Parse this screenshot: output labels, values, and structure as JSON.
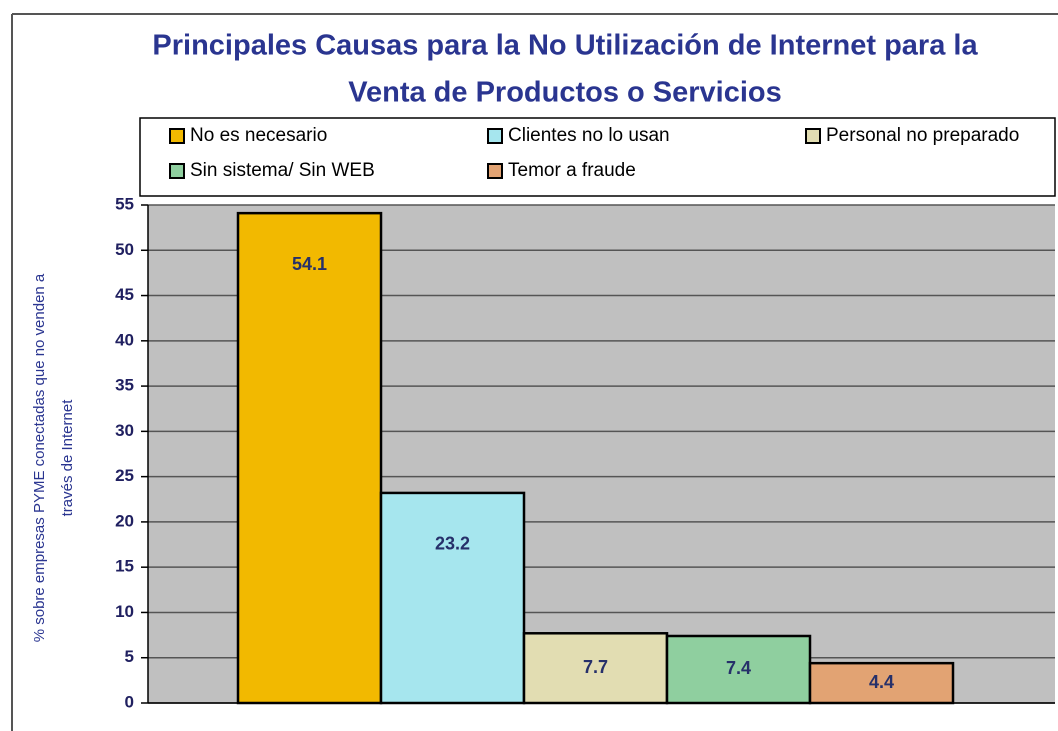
{
  "chart_data": {
    "type": "bar",
    "title": [
      "Principales Causas para la No Utilización de Internet para la",
      "Venta de Productos o Servicios"
    ],
    "y_label": [
      "% sobre empresas PYME conectadas que no venden a",
      "través de Internet"
    ],
    "series": [
      {
        "name": "No es necesario",
        "color": "#f2b900",
        "values": [
          54.1
        ]
      },
      {
        "name": "Clientes no lo usan",
        "color": "#a6e6ee",
        "values": [
          23.2
        ]
      },
      {
        "name": "Personal no preparado",
        "color": "#e2ddb2",
        "values": [
          7.7
        ]
      },
      {
        "name": "Sin sistema/ Sin WEB",
        "color": "#8fcf9f",
        "values": [
          7.4
        ]
      },
      {
        "name": "Temor a fraude",
        "color": "#e2a373",
        "values": [
          4.4
        ]
      }
    ],
    "ylim": [
      0,
      55
    ],
    "yticks": [
      0,
      5,
      10,
      15,
      20,
      25,
      30,
      35,
      40,
      45,
      50,
      55
    ],
    "grid": true,
    "legend": "top"
  }
}
